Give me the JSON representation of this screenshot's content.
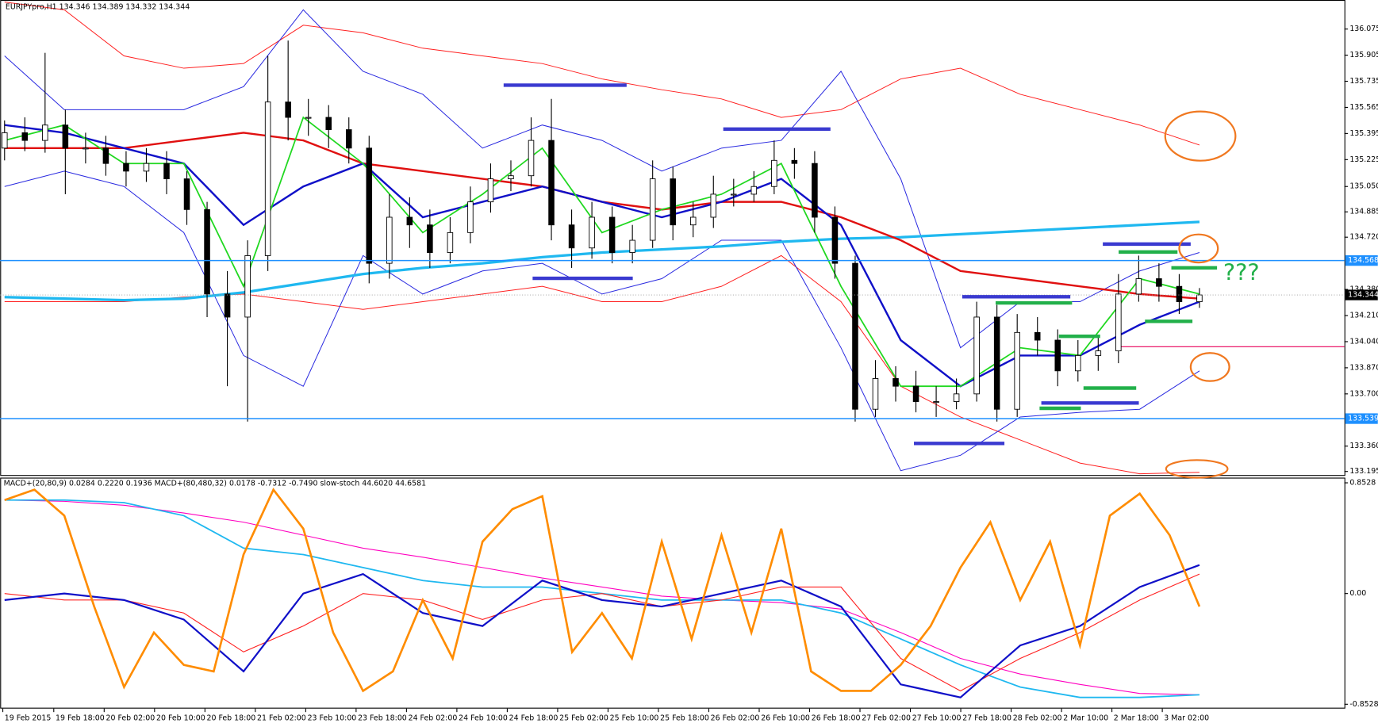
{
  "chart_data": [
    {
      "type": "candlestick",
      "title": "EURJPYpro,H1  134.346 134.389 134.332 134.344",
      "annotation": "???",
      "annotation_color": "#22b04a",
      "up_color": "#ffffff",
      "down_color": "#000000",
      "open": [
        135.3,
        135.4,
        135.35,
        135.45,
        135.3,
        135.3,
        135.2,
        135.15,
        135.2,
        135.1,
        134.9,
        134.35,
        134.2,
        134.6,
        135.6,
        135.5,
        135.5,
        135.42,
        135.3,
        134.55,
        134.85,
        134.8,
        134.62,
        134.75,
        134.95,
        135.1,
        135.12,
        135.35,
        134.8,
        134.65,
        134.85,
        134.62,
        134.7,
        135.1,
        134.8,
        134.85,
        135.0,
        135.0,
        135.05,
        135.22,
        135.2,
        134.85,
        134.55,
        133.6,
        133.8,
        133.75,
        133.65,
        133.65,
        133.7,
        134.2,
        133.6,
        134.1,
        134.05,
        133.85,
        133.95,
        133.98,
        134.35,
        134.45,
        134.4,
        134.3
      ],
      "high": [
        135.48,
        135.5,
        135.92,
        135.55,
        135.4,
        135.38,
        135.28,
        135.3,
        135.28,
        135.15,
        134.95,
        134.5,
        134.7,
        135.9,
        136.0,
        135.62,
        135.58,
        135.5,
        135.38,
        135.0,
        134.98,
        134.9,
        134.85,
        135.05,
        135.2,
        135.22,
        135.5,
        135.62,
        134.9,
        134.95,
        134.92,
        134.8,
        135.22,
        135.18,
        134.95,
        135.12,
        135.1,
        135.15,
        135.35,
        135.3,
        135.28,
        134.92,
        134.6,
        133.92,
        133.88,
        133.85,
        133.75,
        133.8,
        134.3,
        134.28,
        134.22,
        134.2,
        134.12,
        134.05,
        134.08,
        134.48,
        134.6,
        134.55,
        134.48,
        134.389
      ],
      "low": [
        135.22,
        135.28,
        135.27,
        135.0,
        135.2,
        135.12,
        135.05,
        135.08,
        135.0,
        134.8,
        134.2,
        133.75,
        133.52,
        134.5,
        135.35,
        135.38,
        135.3,
        135.2,
        134.42,
        134.45,
        134.65,
        134.52,
        134.55,
        134.68,
        134.88,
        135.02,
        135.05,
        134.7,
        134.52,
        134.58,
        134.55,
        134.55,
        134.65,
        134.7,
        134.72,
        134.78,
        134.92,
        134.95,
        135.0,
        135.1,
        134.75,
        134.45,
        133.52,
        133.55,
        133.65,
        133.58,
        133.55,
        133.6,
        133.65,
        133.52,
        133.55,
        133.95,
        133.75,
        133.78,
        133.85,
        133.9,
        134.3,
        134.3,
        134.22,
        134.26
      ],
      "close": [
        135.4,
        135.35,
        135.45,
        135.3,
        135.3,
        135.2,
        135.15,
        135.2,
        135.1,
        134.9,
        134.35,
        134.2,
        134.6,
        135.6,
        135.5,
        135.5,
        135.42,
        135.3,
        134.55,
        134.85,
        134.8,
        134.62,
        134.75,
        134.95,
        135.1,
        135.12,
        135.35,
        134.8,
        134.65,
        134.85,
        134.62,
        134.7,
        135.1,
        134.8,
        134.85,
        135.0,
        135.0,
        135.05,
        135.22,
        135.2,
        134.85,
        134.55,
        133.6,
        133.8,
        133.75,
        133.65,
        133.65,
        133.7,
        134.2,
        133.6,
        134.1,
        134.05,
        133.85,
        133.95,
        133.98,
        134.35,
        134.45,
        134.4,
        134.3,
        134.344
      ],
      "series": [
        {
          "color": "#ff2020",
          "width": 0.9,
          "values": [
            136.25,
            136.2,
            135.9,
            135.82,
            135.85,
            136.1,
            136.05,
            135.95,
            135.9,
            135.85,
            135.75,
            135.68,
            135.62,
            135.5,
            135.55,
            135.75,
            135.82,
            135.65,
            135.55,
            135.45,
            135.32
          ]
        },
        {
          "color": "#ff2020",
          "width": 0.9,
          "values": [
            134.3,
            134.3,
            134.3,
            134.33,
            134.35,
            134.3,
            134.25,
            134.3,
            134.35,
            134.4,
            134.3,
            134.3,
            134.4,
            134.6,
            134.3,
            133.75,
            133.55,
            133.4,
            133.25,
            133.18,
            133.19
          ]
        },
        {
          "color": "#2828e0",
          "width": 0.9,
          "values": [
            135.9,
            135.55,
            135.55,
            135.55,
            135.7,
            136.2,
            135.8,
            135.65,
            135.3,
            135.45,
            135.35,
            135.15,
            135.3,
            135.35,
            135.8,
            135.1,
            134.0,
            134.3,
            134.3,
            134.5,
            134.62
          ]
        },
        {
          "color": "#2828e0",
          "width": 0.9,
          "values": [
            135.05,
            135.15,
            135.05,
            134.75,
            133.95,
            133.75,
            134.6,
            134.35,
            134.5,
            134.55,
            134.35,
            134.45,
            134.7,
            134.7,
            134.0,
            133.2,
            133.3,
            133.55,
            133.58,
            133.6,
            133.85
          ]
        },
        {
          "color": "#1fb8f0",
          "width": 3,
          "values": [
            134.33,
            134.32,
            134.31,
            134.32,
            134.36,
            134.42,
            134.48,
            134.52,
            134.55,
            134.59,
            134.62,
            134.64,
            134.66,
            134.69,
            134.71,
            134.72,
            134.74,
            134.76,
            134.78,
            134.8,
            134.82
          ]
        },
        {
          "color": "#e01010",
          "width": 2.2,
          "values": [
            135.3,
            135.3,
            135.3,
            135.35,
            135.4,
            135.35,
            135.2,
            135.15,
            135.1,
            135.05,
            134.95,
            134.9,
            134.95,
            134.95,
            134.85,
            134.7,
            134.5,
            134.45,
            134.4,
            134.35,
            134.32
          ]
        },
        {
          "color": "#1010c8",
          "width": 2.2,
          "values": [
            135.45,
            135.4,
            135.3,
            135.2,
            134.8,
            135.05,
            135.2,
            134.85,
            134.95,
            135.05,
            134.95,
            134.85,
            134.95,
            135.1,
            134.8,
            134.05,
            133.75,
            133.95,
            133.95,
            134.15,
            134.3
          ]
        },
        {
          "color": "#20d820",
          "width": 1.6,
          "values": [
            135.35,
            135.45,
            135.2,
            135.2,
            134.4,
            135.5,
            135.2,
            134.75,
            135.0,
            135.3,
            134.75,
            134.9,
            135.0,
            135.2,
            134.4,
            133.75,
            133.75,
            134.0,
            133.95,
            134.45,
            134.35
          ]
        }
      ],
      "hlines": [
        {
          "value": 134.568,
          "color": "#1e90ff",
          "tag_color": "#1e90ff",
          "tag_text": "#ffffff"
        },
        {
          "value": 133.539,
          "color": "#1e90ff",
          "tag_color": "#1e90ff",
          "tag_text": "#ffffff"
        },
        {
          "value": 134.344,
          "color": "#a0a0a0",
          "tag_color": "#000000",
          "tag_text": "#ffffff",
          "dotted": true
        }
      ],
      "level": {
        "value": 134.007,
        "color": "#e8005a"
      },
      "ylim": [
        133.172,
        136.264
      ],
      "yticks": [
        136.075,
        135.905,
        135.735,
        135.565,
        135.395,
        135.225,
        {
          "value": 135.05,
          "label": "135.050"
        },
        134.885,
        {
          "value": 134.72,
          "label": "134.720"
        },
        {
          "value": 134.38,
          "label": "134.380"
        },
        {
          "value": 134.21,
          "label": "134.210"
        },
        {
          "value": 134.04,
          "label": "134.040"
        },
        {
          "value": 133.87,
          "label": "133.870"
        },
        {
          "value": 133.7,
          "label": "133.700"
        },
        {
          "value": 133.36,
          "label": "133.360"
        },
        133.195
      ],
      "xtick_labels": [
        "19 Feb 2015",
        "19 Feb 18:00",
        "20 Feb 02:00",
        "20 Feb 10:00",
        "20 Feb 18:00",
        "21 Feb 02:00",
        "23 Feb 10:00",
        "23 Feb 18:00",
        "24 Feb 02:00",
        "24 Feb 10:00",
        "24 Feb 18:00",
        "25 Feb 02:00",
        "25 Feb 10:00",
        "25 Feb 18:00",
        "26 Feb 02:00",
        "26 Feb 10:00",
        "26 Feb 18:00",
        "27 Feb 02:00",
        "27 Feb 10:00",
        "27 Feb 18:00",
        "28 Feb 02:00",
        "2 Mar 10:00",
        "2 Mar 18:00",
        "3 Mar 02:00"
      ]
    },
    {
      "type": "line",
      "title": "MACD+(20,80,9) 0.0284 0.2220 0.1936 MACD+(80,480,32) 0.0178 -0.7312 -0.7490 slow-stoch 44.6020 44.6581",
      "ylim": [
        -0.886,
        0.886
      ],
      "yticks": [
        0.8528,
        {
          "value": 0,
          "label": "0.00"
        },
        -0.8528
      ],
      "series": [
        {
          "color": "#ff00c0",
          "width": 1,
          "values": [
            0.72,
            0.71,
            0.68,
            0.62,
            0.55,
            0.45,
            0.35,
            0.28,
            0.2,
            0.12,
            0.05,
            -0.02,
            -0.05,
            -0.07,
            -0.12,
            -0.3,
            -0.5,
            -0.62,
            -0.7,
            -0.77,
            -0.78
          ]
        },
        {
          "color": "#1fb8f0",
          "width": 1.6,
          "values": [
            0.72,
            0.72,
            0.7,
            0.6,
            0.35,
            0.3,
            0.2,
            0.1,
            0.05,
            0.05,
            0.0,
            -0.05,
            -0.05,
            -0.05,
            -0.15,
            -0.35,
            -0.55,
            -0.72,
            -0.8,
            -0.8,
            -0.78
          ]
        },
        {
          "color": "#ff2020",
          "width": 1,
          "values": [
            0.0,
            -0.05,
            -0.05,
            -0.15,
            -0.45,
            -0.25,
            0.0,
            -0.05,
            -0.2,
            -0.05,
            0.0,
            -0.1,
            -0.05,
            0.05,
            0.05,
            -0.5,
            -0.75,
            -0.5,
            -0.3,
            -0.05,
            0.15
          ]
        },
        {
          "color": "#1010c8",
          "width": 2,
          "values": [
            -0.05,
            0.0,
            -0.05,
            -0.2,
            -0.6,
            0.0,
            0.15,
            -0.15,
            -0.25,
            0.1,
            -0.05,
            -0.1,
            0.0,
            0.1,
            -0.1,
            -0.7,
            -0.8,
            -0.4,
            -0.25,
            0.05,
            0.22
          ]
        },
        {
          "color": "#ff8c00",
          "width": 2.4,
          "values": [
            0.72,
            0.8,
            0.6,
            -0.1,
            -0.72,
            -0.3,
            -0.55,
            -0.6,
            0.3,
            0.8,
            0.5,
            -0.3,
            -0.75,
            -0.6,
            -0.05,
            -0.5,
            0.4,
            0.65,
            0.75,
            -0.45,
            -0.15,
            -0.5,
            0.4,
            -0.35,
            0.45,
            -0.3,
            0.5,
            -0.6,
            -0.75,
            -0.75,
            -0.55,
            -0.25,
            0.2,
            0.55,
            -0.05,
            0.4,
            -0.4,
            0.6,
            0.77,
            0.45,
            -0.1
          ]
        }
      ]
    }
  ]
}
